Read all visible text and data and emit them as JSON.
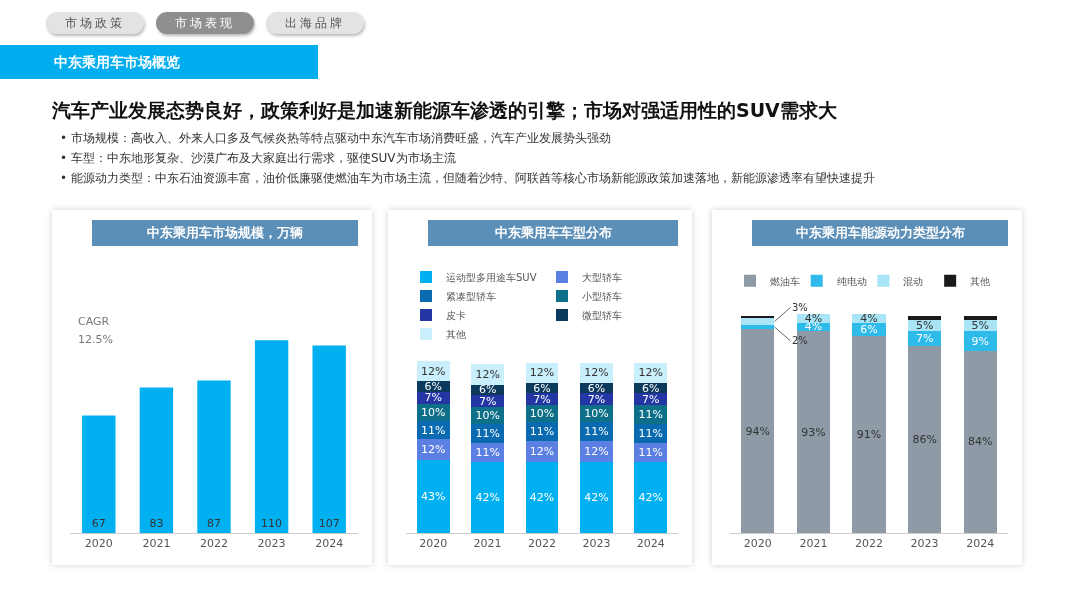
{
  "chart_data": [
    {
      "type": "other",
      "title": "中东乘用车市场概览",
      "subtitle": "汽车产业发展态势良好，政策利好是加速新能源车渗透的引擎；市场对强适用性的SUV需求大",
      "annotations": [
        "市场政策",
        "市场表现",
        "出海品牌",
        "• 市场规模：高收入、外来人口多及气候炎热等特点驱动中东汽车市场消费旺盛，汽车产业发展势头强劲",
        "• 车型：中东地形复杂、沙漠广布及大家庭出行需求，驱使SUV为市场主流",
        "• 能源动力类型：中东石油资源丰富，油价低廉驱使燃油车为市场主流，但随着沙特、阿联酋等核心市场新能源政策加速落地，新能源渗透率有望快速提升"
      ]
    },
    {
      "type": "bar",
      "title": "中东乘用车市场规模，万辆",
      "categories": [
        "2020",
        "2021",
        "2022",
        "2023",
        "2024"
      ],
      "values": [
        67,
        83,
        87,
        110,
        107
      ],
      "color": "#00b0f0",
      "data_labels": true,
      "legend": false,
      "annotations": [
        "CAGR",
        "12.5%"
      ]
    },
    {
      "type": "bar",
      "title": "中东乘用车车型分布",
      "categories": [
        "2020",
        "2021",
        "2022",
        "2023",
        "2024"
      ],
      "stacked": true,
      "legend": "top",
      "series": [
        {
          "name": "运动型多用途车SUV",
          "color": "#00b0f0",
          "values": [
            43,
            42,
            42,
            42,
            42
          ],
          "value_labels": [
            "43%",
            "42%",
            "42%",
            "42%",
            "42%"
          ]
        },
        {
          "name": "大型轿车",
          "color": "#5b7fe3",
          "values": [
            12,
            11,
            12,
            12,
            11
          ],
          "value_labels": [
            "12%",
            "11%",
            "12%",
            "12%",
            "11%"
          ]
        },
        {
          "name": "紧凑型轿车",
          "color": "#0a6ab0",
          "values": [
            11,
            11,
            11,
            11,
            11
          ],
          "value_labels": [
            "11%",
            "11%",
            "11%",
            "11%",
            "11%"
          ]
        },
        {
          "name": "小型轿车",
          "color": "#0d6f88",
          "values": [
            10,
            10,
            10,
            10,
            11
          ],
          "value_labels": [
            "10%",
            "10%",
            "10%",
            "10%",
            "11%"
          ]
        },
        {
          "name": "皮卡",
          "color": "#2436a3",
          "values": [
            7,
            7,
            7,
            7,
            7
          ],
          "value_labels": [
            "7%",
            "7%",
            "7%",
            "7%",
            "7%"
          ]
        },
        {
          "name": "微型轿车",
          "color": "#0b3a5c",
          "values": [
            6,
            6,
            6,
            6,
            6
          ],
          "value_labels": [
            "6%",
            "6%",
            "6%",
            "6%",
            "6%"
          ]
        },
        {
          "name": "其他",
          "color": "#c9effc",
          "values": [
            12,
            12,
            12,
            12,
            12
          ],
          "value_labels": [
            "12%",
            "12%",
            "12%",
            "12%",
            "12%"
          ]
        }
      ]
    },
    {
      "type": "bar",
      "title": "中东乘用车能源动力类型分布",
      "categories": [
        "2020",
        "2021",
        "2022",
        "2023",
        "2024"
      ],
      "stacked": true,
      "legend": "top",
      "series": [
        {
          "name": "燃油车",
          "color": "#8e9ba6",
          "values": [
            94,
            93,
            91,
            86,
            84
          ],
          "value_labels": [
            "94%",
            "93%",
            "91%",
            "86%",
            "84%"
          ]
        },
        {
          "name": "纯电动",
          "color": "#2ebbea",
          "values": [
            2,
            4,
            6,
            7,
            9
          ],
          "value_labels": [
            "2%",
            "4%",
            "6%",
            "7%",
            "9%"
          ]
        },
        {
          "name": "混动",
          "color": "#a9e4f7",
          "values": [
            3,
            4,
            4,
            5,
            5
          ],
          "value_labels": [
            "3%",
            "4%",
            "4%",
            "5%",
            "5%"
          ]
        },
        {
          "name": "其他",
          "color": "#1a1a1a",
          "values": [
            1,
            null,
            null,
            2,
            2
          ],
          "value_labels": [
            null,
            null,
            null,
            null,
            null
          ]
        }
      ]
    }
  ]
}
